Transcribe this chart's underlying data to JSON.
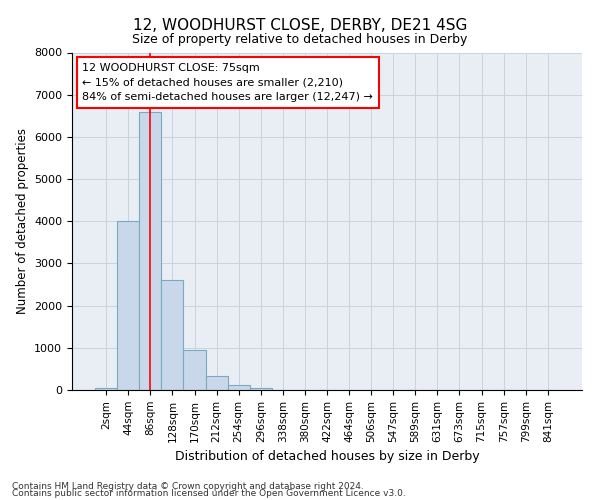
{
  "title1": "12, WOODHURST CLOSE, DERBY, DE21 4SG",
  "title2": "Size of property relative to detached houses in Derby",
  "xlabel": "Distribution of detached houses by size in Derby",
  "ylabel": "Number of detached properties",
  "bar_labels": [
    "2sqm",
    "44sqm",
    "86sqm",
    "128sqm",
    "170sqm",
    "212sqm",
    "254sqm",
    "296sqm",
    "338sqm",
    "380sqm",
    "422sqm",
    "464sqm",
    "506sqm",
    "547sqm",
    "589sqm",
    "631sqm",
    "673sqm",
    "715sqm",
    "757sqm",
    "799sqm",
    "841sqm"
  ],
  "bar_heights": [
    50,
    4000,
    6600,
    2600,
    950,
    330,
    120,
    50,
    0,
    0,
    0,
    0,
    0,
    0,
    0,
    0,
    0,
    0,
    0,
    0,
    0
  ],
  "bar_color": "#c8d8ea",
  "bar_edge_color": "#7aaabf",
  "red_line_x": 2.0,
  "annotation_line1": "12 WOODHURST CLOSE: 75sqm",
  "annotation_line2": "← 15% of detached houses are smaller (2,210)",
  "annotation_line3": "84% of semi-detached houses are larger (12,247) →",
  "grid_color": "#c8d4e0",
  "background_color": "#e8eef4",
  "ylim": [
    0,
    8000
  ],
  "yticks": [
    0,
    1000,
    2000,
    3000,
    4000,
    5000,
    6000,
    7000,
    8000
  ],
  "footnote1": "Contains HM Land Registry data © Crown copyright and database right 2024.",
  "footnote2": "Contains public sector information licensed under the Open Government Licence v3.0."
}
